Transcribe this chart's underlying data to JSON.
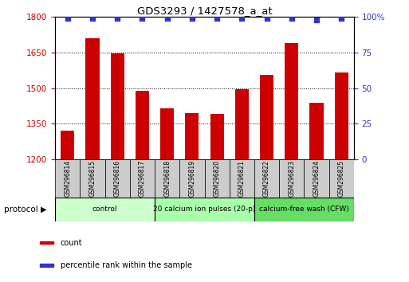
{
  "title": "GDS3293 / 1427578_a_at",
  "samples": [
    "GSM296814",
    "GSM296815",
    "GSM296816",
    "GSM296817",
    "GSM296818",
    "GSM296819",
    "GSM296820",
    "GSM296821",
    "GSM296822",
    "GSM296823",
    "GSM296824",
    "GSM296825"
  ],
  "counts": [
    1320,
    1710,
    1645,
    1490,
    1415,
    1395,
    1390,
    1495,
    1555,
    1690,
    1440,
    1565
  ],
  "percentile_ranks": [
    99,
    99,
    99,
    99,
    99,
    99,
    99,
    99,
    99,
    99,
    98,
    99
  ],
  "ylim_left": [
    1200,
    1800
  ],
  "ylim_right": [
    0,
    100
  ],
  "yticks_left": [
    1200,
    1350,
    1500,
    1650,
    1800
  ],
  "yticks_right": [
    0,
    25,
    50,
    75,
    100
  ],
  "ytick_labels_right": [
    "0",
    "25",
    "50",
    "75",
    "100%"
  ],
  "bar_color": "#cc0000",
  "dot_color": "#3333cc",
  "protocol_groups": [
    {
      "label": "control",
      "start": 0,
      "end": 3,
      "color": "#ccffcc"
    },
    {
      "label": "20 calcium ion pulses (20-p)",
      "start": 4,
      "end": 7,
      "color": "#aaffaa"
    },
    {
      "label": "calcium-free wash (CFW)",
      "start": 8,
      "end": 11,
      "color": "#66dd66"
    }
  ],
  "protocol_label": "protocol",
  "legend_items": [
    {
      "label": "count",
      "color": "#cc0000"
    },
    {
      "label": "percentile rank within the sample",
      "color": "#3333cc"
    }
  ],
  "label_box_color": "#cccccc",
  "fig_width": 5.13,
  "fig_height": 3.54
}
